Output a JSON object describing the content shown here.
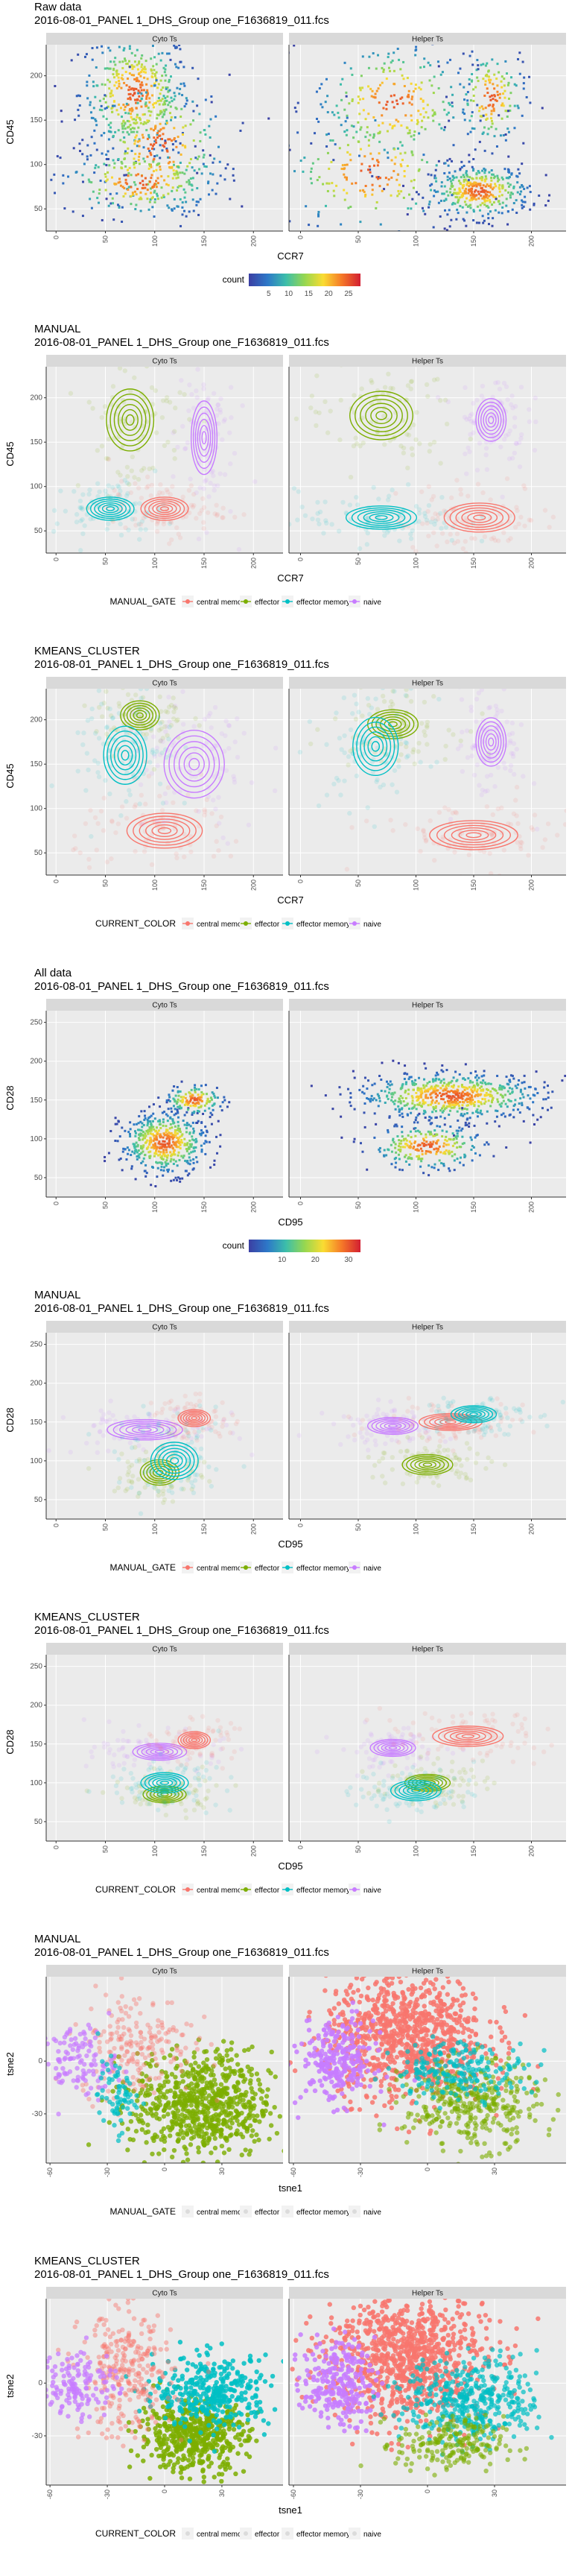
{
  "colors": {
    "central memory": "#F8766D",
    "effector": "#7CAE00",
    "effector memory": "#00BFC4",
    "naive": "#C77CFF",
    "density_low": "#3b3fa3",
    "panel_bg": "#EBEBEB",
    "strip_bg": "#D9D9D9"
  },
  "facets": [
    "Cyto Ts",
    "Helper Ts"
  ],
  "gates": [
    "central memory",
    "effector",
    "effector memory",
    "naive"
  ],
  "chart_data": [
    {
      "type": "scatter",
      "style": "density",
      "title": "Raw data",
      "subtitle": "2016-08-01_PANEL 1_DHS_Group one_F1636819_011.fcs",
      "xlabel": "CCR7",
      "ylabel": "CD45",
      "xlim": [
        -10,
        230
      ],
      "ylim": [
        25,
        235
      ],
      "xticks": [
        0,
        50,
        100,
        150,
        200
      ],
      "yticks": [
        50,
        100,
        150,
        200
      ],
      "legend": {
        "title": "count",
        "position": "bottom",
        "type": "colorbar",
        "ticks": [
          5,
          10,
          15,
          20,
          25
        ]
      },
      "series": [
        {
          "facet": "Cyto Ts",
          "clusters": [
            {
              "x": 80,
              "y": 180,
              "sx": 28,
              "sy": 35,
              "n": 420
            },
            {
              "x": 105,
              "y": 120,
              "sx": 35,
              "sy": 40,
              "n": 260
            },
            {
              "x": 85,
              "y": 80,
              "sx": 40,
              "sy": 20,
              "n": 220
            }
          ]
        },
        {
          "facet": "Helper Ts",
          "clusters": [
            {
              "x": 155,
              "y": 70,
              "sx": 22,
              "sy": 15,
              "n": 380
            },
            {
              "x": 165,
              "y": 175,
              "sx": 15,
              "sy": 28,
              "n": 160
            },
            {
              "x": 80,
              "y": 170,
              "sx": 35,
              "sy": 35,
              "n": 260
            },
            {
              "x": 60,
              "y": 90,
              "sx": 40,
              "sy": 35,
              "n": 180
            }
          ]
        }
      ]
    },
    {
      "type": "scatter",
      "style": "contour",
      "title": "MANUAL",
      "subtitle": "2016-08-01_PANEL 1_DHS_Group one_F1636819_011.fcs",
      "xlabel": "CCR7",
      "ylabel": "CD45",
      "xlim": [
        -10,
        230
      ],
      "ylim": [
        25,
        235
      ],
      "xticks": [
        0,
        50,
        100,
        150,
        200
      ],
      "yticks": [
        50,
        100,
        150,
        200
      ],
      "legend": {
        "title": "MANUAL_GATE",
        "position": "bottom",
        "type": "categories"
      },
      "series": [
        {
          "facet": "Cyto Ts",
          "name": "effector",
          "x": 75,
          "y": 175,
          "sx": 22,
          "sy": 32
        },
        {
          "facet": "Cyto Ts",
          "name": "effector memory",
          "x": 55,
          "y": 75,
          "sx": 22,
          "sy": 12
        },
        {
          "facet": "Cyto Ts",
          "name": "central memory",
          "x": 110,
          "y": 75,
          "sx": 22,
          "sy": 12
        },
        {
          "facet": "Cyto Ts",
          "name": "naive",
          "x": 150,
          "y": 155,
          "sx": 12,
          "sy": 38
        },
        {
          "facet": "Helper Ts",
          "name": "effector",
          "x": 70,
          "y": 180,
          "sx": 25,
          "sy": 25
        },
        {
          "facet": "Helper Ts",
          "name": "effector memory",
          "x": 70,
          "y": 65,
          "sx": 28,
          "sy": 12
        },
        {
          "facet": "Helper Ts",
          "name": "central memory",
          "x": 155,
          "y": 65,
          "sx": 28,
          "sy": 15
        },
        {
          "facet": "Helper Ts",
          "name": "naive",
          "x": 165,
          "y": 175,
          "sx": 12,
          "sy": 22
        }
      ]
    },
    {
      "type": "scatter",
      "style": "contour",
      "title": "KMEANS_CLUSTER",
      "subtitle": "2016-08-01_PANEL 1_DHS_Group one_F1636819_011.fcs",
      "xlabel": "CCR7",
      "ylabel": "CD45",
      "xlim": [
        -10,
        230
      ],
      "ylim": [
        25,
        235
      ],
      "xticks": [
        0,
        50,
        100,
        150,
        200
      ],
      "yticks": [
        50,
        100,
        150,
        200
      ],
      "legend": {
        "title": "CURRENT_COLOR",
        "position": "bottom",
        "type": "categories"
      },
      "series": [
        {
          "facet": "Cyto Ts",
          "name": "effector",
          "x": 85,
          "y": 205,
          "sx": 18,
          "sy": 15
        },
        {
          "facet": "Cyto Ts",
          "name": "effector memory",
          "x": 70,
          "y": 160,
          "sx": 20,
          "sy": 30
        },
        {
          "facet": "Cyto Ts",
          "name": "central memory",
          "x": 110,
          "y": 75,
          "sx": 35,
          "sy": 18
        },
        {
          "facet": "Cyto Ts",
          "name": "naive",
          "x": 140,
          "y": 150,
          "sx": 28,
          "sy": 35
        },
        {
          "facet": "Helper Ts",
          "name": "effector",
          "x": 80,
          "y": 195,
          "sx": 20,
          "sy": 15
        },
        {
          "facet": "Helper Ts",
          "name": "effector memory",
          "x": 65,
          "y": 170,
          "sx": 18,
          "sy": 30
        },
        {
          "facet": "Helper Ts",
          "name": "central memory",
          "x": 150,
          "y": 70,
          "sx": 35,
          "sy": 15
        },
        {
          "facet": "Helper Ts",
          "name": "naive",
          "x": 165,
          "y": 175,
          "sx": 12,
          "sy": 25
        }
      ]
    },
    {
      "type": "scatter",
      "style": "density",
      "title": "All data",
      "subtitle": "2016-08-01_PANEL 1_DHS_Group one_F1636819_011.fcs",
      "xlabel": "CD95",
      "ylabel": "CD28",
      "xlim": [
        -10,
        230
      ],
      "ylim": [
        25,
        265
      ],
      "xticks": [
        0,
        50,
        100,
        150,
        200
      ],
      "yticks": [
        50,
        100,
        150,
        200,
        250
      ],
      "legend": {
        "title": "count",
        "position": "bottom",
        "type": "colorbar",
        "ticks": [
          10,
          20,
          30
        ]
      },
      "series": [
        {
          "facet": "Cyto Ts",
          "clusters": [
            {
              "x": 110,
              "y": 95,
              "sx": 22,
              "sy": 20,
              "n": 500
            },
            {
              "x": 140,
              "y": 150,
              "sx": 15,
              "sy": 10,
              "n": 140
            }
          ]
        },
        {
          "facet": "Helper Ts",
          "clusters": [
            {
              "x": 130,
              "y": 155,
              "sx": 40,
              "sy": 15,
              "n": 650
            },
            {
              "x": 110,
              "y": 90,
              "sx": 25,
              "sy": 15,
              "n": 260
            }
          ]
        }
      ]
    },
    {
      "type": "scatter",
      "style": "contour",
      "title": "MANUAL",
      "subtitle": "2016-08-01_PANEL 1_DHS_Group one_F1636819_011.fcs",
      "xlabel": "CD95",
      "ylabel": "CD28",
      "xlim": [
        -10,
        230
      ],
      "ylim": [
        25,
        265
      ],
      "xticks": [
        0,
        50,
        100,
        150,
        200
      ],
      "yticks": [
        50,
        100,
        150,
        200,
        250
      ],
      "legend": {
        "title": "MANUAL_GATE",
        "position": "bottom",
        "type": "categories"
      },
      "series": [
        {
          "facet": "Cyto Ts",
          "name": "naive",
          "x": 90,
          "y": 140,
          "sx": 35,
          "sy": 12
        },
        {
          "facet": "Cyto Ts",
          "name": "central memory",
          "x": 140,
          "y": 155,
          "sx": 15,
          "sy": 10
        },
        {
          "facet": "Cyto Ts",
          "name": "effector",
          "x": 105,
          "y": 85,
          "sx": 18,
          "sy": 15
        },
        {
          "facet": "Cyto Ts",
          "name": "effector memory",
          "x": 120,
          "y": 100,
          "sx": 22,
          "sy": 22
        },
        {
          "facet": "Helper Ts",
          "name": "naive",
          "x": 80,
          "y": 145,
          "sx": 20,
          "sy": 10
        },
        {
          "facet": "Helper Ts",
          "name": "central memory",
          "x": 130,
          "y": 150,
          "sx": 25,
          "sy": 10
        },
        {
          "facet": "Helper Ts",
          "name": "effector memory",
          "x": 150,
          "y": 160,
          "sx": 18,
          "sy": 10
        },
        {
          "facet": "Helper Ts",
          "name": "effector",
          "x": 110,
          "y": 95,
          "sx": 20,
          "sy": 12
        }
      ]
    },
    {
      "type": "scatter",
      "style": "contour",
      "title": "KMEANS_CLUSTER",
      "subtitle": "2016-08-01_PANEL 1_DHS_Group one_F1636819_011.fcs",
      "xlabel": "CD95",
      "ylabel": "CD28",
      "xlim": [
        -10,
        230
      ],
      "ylim": [
        25,
        265
      ],
      "xticks": [
        0,
        50,
        100,
        150,
        200
      ],
      "yticks": [
        50,
        100,
        150,
        200,
        250
      ],
      "legend": {
        "title": "CURRENT_COLOR",
        "position": "bottom",
        "type": "categories"
      },
      "series": [
        {
          "facet": "Cyto Ts",
          "name": "naive",
          "x": 105,
          "y": 140,
          "sx": 25,
          "sy": 10
        },
        {
          "facet": "Cyto Ts",
          "name": "central memory",
          "x": 140,
          "y": 155,
          "sx": 15,
          "sy": 10
        },
        {
          "facet": "Cyto Ts",
          "name": "effector",
          "x": 110,
          "y": 85,
          "sx": 20,
          "sy": 10
        },
        {
          "facet": "Cyto Ts",
          "name": "effector memory",
          "x": 110,
          "y": 100,
          "sx": 22,
          "sy": 12
        },
        {
          "facet": "Helper Ts",
          "name": "naive",
          "x": 80,
          "y": 145,
          "sx": 18,
          "sy": 10
        },
        {
          "facet": "Helper Ts",
          "name": "central memory",
          "x": 145,
          "y": 160,
          "sx": 28,
          "sy": 12
        },
        {
          "facet": "Helper Ts",
          "name": "effector",
          "x": 110,
          "y": 100,
          "sx": 18,
          "sy": 10
        },
        {
          "facet": "Helper Ts",
          "name": "effector memory",
          "x": 100,
          "y": 90,
          "sx": 20,
          "sy": 12
        }
      ]
    },
    {
      "type": "scatter",
      "style": "points",
      "title": "MANUAL",
      "subtitle": "2016-08-01_PANEL 1_DHS_Group one_F1636819_011.fcs",
      "xlabel": "tsne1",
      "ylabel": "tsne2",
      "xlim": [
        -62,
        62
      ],
      "ylim": [
        -58,
        48
      ],
      "xticks": [
        -60,
        -30,
        0,
        30
      ],
      "yticks": [
        0,
        -30
      ],
      "legend": {
        "title": "MANUAL_GATE",
        "position": "bottom",
        "type": "categories_faded"
      },
      "series": [
        {
          "facet": "Cyto Ts",
          "name": "effector",
          "x": 20,
          "y": -25,
          "sx": 18,
          "sy": 15,
          "n": 700,
          "alpha": 0.8
        },
        {
          "facet": "Cyto Ts",
          "name": "central memory",
          "x": -15,
          "y": 10,
          "sx": 15,
          "sy": 15,
          "n": 200,
          "alpha": 0.4
        },
        {
          "facet": "Cyto Ts",
          "name": "naive",
          "x": -45,
          "y": 0,
          "sx": 10,
          "sy": 10,
          "n": 120,
          "alpha": 0.7
        },
        {
          "facet": "Cyto Ts",
          "name": "effector memory",
          "x": -25,
          "y": -20,
          "sx": 5,
          "sy": 10,
          "n": 70,
          "alpha": 0.7
        },
        {
          "facet": "Helper Ts",
          "name": "central memory",
          "x": -10,
          "y": 15,
          "sx": 18,
          "sy": 18,
          "n": 900,
          "alpha": 0.85
        },
        {
          "facet": "Helper Ts",
          "name": "naive",
          "x": -40,
          "y": 0,
          "sx": 8,
          "sy": 12,
          "n": 250,
          "alpha": 0.85
        },
        {
          "facet": "Helper Ts",
          "name": "effector",
          "x": 20,
          "y": -25,
          "sx": 15,
          "sy": 12,
          "n": 350,
          "alpha": 0.6
        },
        {
          "facet": "Helper Ts",
          "name": "effector memory",
          "x": 15,
          "y": -5,
          "sx": 15,
          "sy": 8,
          "n": 200,
          "alpha": 0.7
        }
      ]
    },
    {
      "type": "scatter",
      "style": "points",
      "title": "KMEANS_CLUSTER",
      "subtitle": "2016-08-01_PANEL 1_DHS_Group one_F1636819_011.fcs",
      "xlabel": "tsne1",
      "ylabel": "tsne2",
      "xlim": [
        -62,
        62
      ],
      "ylim": [
        -58,
        48
      ],
      "xticks": [
        -60,
        -30,
        0,
        30
      ],
      "yticks": [
        0,
        -30
      ],
      "legend": {
        "title": "CURRENT_COLOR",
        "position": "bottom",
        "type": "categories_faded"
      },
      "series": [
        {
          "facet": "Cyto Ts",
          "name": "effector",
          "x": 15,
          "y": -30,
          "sx": 14,
          "sy": 10,
          "n": 500,
          "alpha": 0.85
        },
        {
          "facet": "Cyto Ts",
          "name": "effector memory",
          "x": 25,
          "y": -5,
          "sx": 15,
          "sy": 10,
          "n": 350,
          "alpha": 0.85
        },
        {
          "facet": "Cyto Ts",
          "name": "central memory",
          "x": -20,
          "y": 5,
          "sx": 12,
          "sy": 18,
          "n": 280,
          "alpha": 0.45
        },
        {
          "facet": "Cyto Ts",
          "name": "naive",
          "x": -45,
          "y": 0,
          "sx": 10,
          "sy": 10,
          "n": 140,
          "alpha": 0.75
        },
        {
          "facet": "Helper Ts",
          "name": "central memory",
          "x": -10,
          "y": 15,
          "sx": 18,
          "sy": 18,
          "n": 900,
          "alpha": 0.85
        },
        {
          "facet": "Helper Ts",
          "name": "naive",
          "x": -40,
          "y": 0,
          "sx": 8,
          "sy": 12,
          "n": 250,
          "alpha": 0.85
        },
        {
          "facet": "Helper Ts",
          "name": "effector memory",
          "x": 20,
          "y": -10,
          "sx": 15,
          "sy": 12,
          "n": 400,
          "alpha": 0.7
        },
        {
          "facet": "Helper Ts",
          "name": "effector",
          "x": 10,
          "y": -35,
          "sx": 12,
          "sy": 8,
          "n": 200,
          "alpha": 0.6
        }
      ]
    }
  ]
}
